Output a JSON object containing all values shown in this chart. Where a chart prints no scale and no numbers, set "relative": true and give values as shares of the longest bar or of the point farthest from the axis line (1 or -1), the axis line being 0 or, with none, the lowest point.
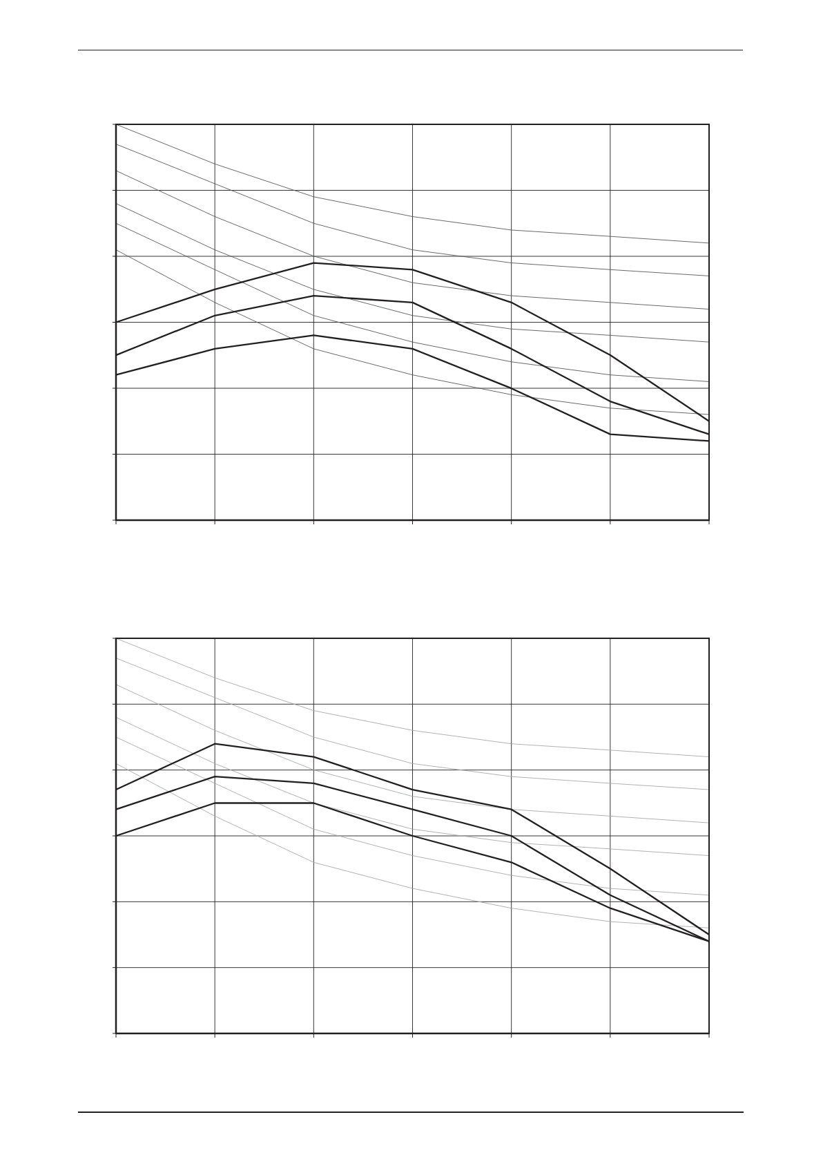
{
  "chart_data": [
    {
      "type": "line",
      "relative": true,
      "categories": [
        null,
        null,
        null,
        null,
        null,
        null,
        null
      ],
      "grid": true,
      "marker": "none",
      "series": [
        {
          "color": "#58595b",
          "values": [
            1,
            0.9,
            0.817,
            0.767,
            0.733,
            0.717,
            0.7
          ]
        },
        {
          "color": "#58595b",
          "values": [
            0.95,
            0.85,
            0.75,
            0.683,
            0.65,
            0.633,
            0.617
          ]
        },
        {
          "color": "#58595b",
          "values": [
            0.883,
            0.767,
            0.667,
            0.6,
            0.567,
            0.55,
            0.533
          ]
        },
        {
          "color": "#58595b",
          "values": [
            0.8,
            0.683,
            0.583,
            0.517,
            0.483,
            0.467,
            0.45
          ]
        },
        {
          "color": "#58595b",
          "values": [
            0.75,
            0.633,
            0.517,
            0.45,
            0.4,
            0.367,
            0.35
          ]
        },
        {
          "color": "#58595b",
          "values": [
            0.683,
            0.55,
            0.433,
            0.367,
            0.317,
            0.283,
            0.267
          ]
        },
        {
          "color": "#231f20",
          "values": [
            0.5,
            0.583,
            0.65,
            0.633,
            0.55,
            0.417,
            0.25
          ]
        },
        {
          "color": "#231f20",
          "values": [
            0.417,
            0.517,
            0.567,
            0.55,
            0.433,
            0.3,
            0.217
          ]
        },
        {
          "color": "#231f20",
          "values": [
            0.367,
            0.433,
            0.467,
            0.433,
            0.333,
            0.217,
            0.2
          ]
        }
      ]
    },
    {
      "type": "line",
      "relative": true,
      "categories": [
        null,
        null,
        null,
        null,
        null,
        null,
        null
      ],
      "grid": true,
      "marker": "none",
      "series": [
        {
          "color": "#a7a9ac",
          "values": [
            1,
            0.9,
            0.817,
            0.767,
            0.733,
            0.717,
            0.7
          ]
        },
        {
          "color": "#a7a9ac",
          "values": [
            0.95,
            0.85,
            0.75,
            0.683,
            0.65,
            0.633,
            0.617
          ]
        },
        {
          "color": "#a7a9ac",
          "values": [
            0.883,
            0.767,
            0.667,
            0.6,
            0.567,
            0.55,
            0.533
          ]
        },
        {
          "color": "#a7a9ac",
          "values": [
            0.8,
            0.683,
            0.583,
            0.517,
            0.483,
            0.467,
            0.45
          ]
        },
        {
          "color": "#a7a9ac",
          "values": [
            0.75,
            0.633,
            0.517,
            0.45,
            0.4,
            0.367,
            0.35
          ]
        },
        {
          "color": "#a7a9ac",
          "values": [
            0.683,
            0.55,
            0.433,
            0.367,
            0.317,
            0.283,
            0.267
          ]
        },
        {
          "color": "#231f20",
          "values": [
            0.617,
            0.733,
            0.7,
            0.617,
            0.567,
            0.417,
            0.25
          ]
        },
        {
          "color": "#231f20",
          "values": [
            0.567,
            0.65,
            0.633,
            0.567,
            0.5,
            0.35,
            0.233
          ]
        },
        {
          "color": "#231f20",
          "values": [
            0.5,
            0.583,
            0.583,
            0.5,
            0.433,
            0.317,
            0.233
          ]
        }
      ]
    }
  ]
}
